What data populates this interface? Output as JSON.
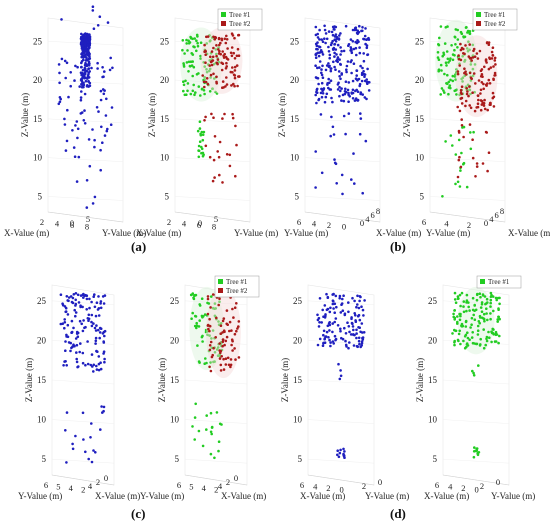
{
  "panel_labels": [
    "(a)",
    "(b)",
    "(c)",
    "(d)"
  ],
  "chart_data": [
    {
      "type": "scatter",
      "panel": "(a)",
      "view": "left",
      "xlabel": "X-Value (m)",
      "ylabel": "Z-Value (m)",
      "zlabel": "Y-Value (m)",
      "ylim": [
        3,
        28
      ],
      "yticks": [
        5,
        10,
        15,
        20,
        25
      ],
      "xticks": [
        "2",
        "4",
        "6",
        "8"
      ],
      "zticks": [
        "0",
        "5"
      ],
      "series": [
        {
          "color": "#1f1fbf",
          "clusters": [
            [
              24,
              26,
              120
            ],
            [
              19,
              25,
              120
            ],
            [
              10,
              23,
              60
            ],
            [
              1,
              30,
              25
            ]
          ]
        }
      ]
    },
    {
      "type": "scatter",
      "panel": "(a)",
      "view": "right",
      "xlabel": "X-Value (m)",
      "ylabel": "Z-Value (m)",
      "zlabel": "Y-Value (m)",
      "ylim": [
        3,
        28
      ],
      "yticks": [
        5,
        10,
        15,
        20,
        25
      ],
      "xticks": [
        "2",
        "4",
        "6",
        "8"
      ],
      "zticks": [
        "0",
        "5"
      ],
      "legend": {
        "placement": "top-right",
        "entries": [
          "Tree #1",
          "Tree #2"
        ]
      },
      "series": [
        {
          "name": "Tree #1",
          "color": "#22cc22",
          "clusters": [
            [
              18,
              26,
              100
            ],
            [
              10,
              15,
              20
            ]
          ]
        },
        {
          "name": "Tree #2",
          "color": "#aa1a1a",
          "clusters": [
            [
              19,
              26,
              100
            ],
            [
              6,
              16,
              25
            ]
          ]
        }
      ]
    },
    {
      "type": "scatter",
      "panel": "(b)",
      "view": "left",
      "xlabel": "Y-Value (m)",
      "ylabel": "Z-Value (m)",
      "zlabel": "X-Value (m)",
      "ylim": [
        3,
        28
      ],
      "yticks": [
        5,
        10,
        15,
        20,
        25
      ],
      "xticks": [
        "6",
        "4",
        "2",
        "0"
      ],
      "zticks": [
        "0",
        "4",
        "6",
        "8"
      ],
      "series": [
        {
          "color": "#1f1fbf",
          "clusters": [
            [
              17,
              27,
              260
            ],
            [
              5,
              16,
              25
            ]
          ]
        }
      ]
    },
    {
      "type": "scatter",
      "panel": "(b)",
      "view": "right",
      "xlabel": "Y-Value (m)",
      "ylabel": "Z-Value (m)",
      "zlabel": "X-Value (m)",
      "ylim": [
        3,
        28
      ],
      "yticks": [
        5,
        10,
        15,
        20,
        25
      ],
      "xticks": [
        "6",
        "4",
        "2"
      ],
      "zticks": [
        "0",
        "4",
        "6",
        "8"
      ],
      "legend": {
        "placement": "top-right",
        "entries": [
          "Tree #1",
          "Tree #2"
        ]
      },
      "series": [
        {
          "name": "Tree #1",
          "color": "#22cc22",
          "clusters": [
            [
              18,
              27,
              120
            ],
            [
              5,
              15,
              20
            ]
          ]
        },
        {
          "name": "Tree #2",
          "color": "#aa1a1a",
          "clusters": [
            [
              16,
              25,
              120
            ],
            [
              7,
              15,
              20
            ]
          ]
        }
      ]
    },
    {
      "type": "scatter",
      "panel": "(c)",
      "view": "left",
      "xlabel": "Y-Value (m)",
      "ylabel": "Z-Value (m)",
      "zlabel": "X-Value (m)",
      "ylim": [
        3,
        27
      ],
      "yticks": [
        5,
        10,
        15,
        20,
        25
      ],
      "xticks": [
        "6",
        "5",
        "4",
        "2"
      ],
      "zticks": [
        "4",
        "2",
        "0"
      ],
      "series": [
        {
          "color": "#1f1fbf",
          "clusters": [
            [
              16,
              26,
              150
            ],
            [
              4,
              12,
              20
            ]
          ]
        }
      ]
    },
    {
      "type": "scatter",
      "panel": "(c)",
      "view": "right",
      "xlabel": "Y-Value (m)",
      "ylabel": "Z-Value (m)",
      "zlabel": "X-Value (m)",
      "ylim": [
        3,
        27
      ],
      "yticks": [
        5,
        10,
        15,
        20,
        25
      ],
      "xticks": [
        "6",
        "5",
        "4",
        "2"
      ],
      "zticks": [
        "4",
        "2",
        "0"
      ],
      "legend": {
        "placement": "top-right",
        "entries": [
          "Tree #1",
          "Tree #2"
        ]
      },
      "series": [
        {
          "name": "Tree #1",
          "color": "#22cc22",
          "clusters": [
            [
              17,
              26,
              80
            ],
            [
              4,
              12,
              20
            ]
          ]
        },
        {
          "name": "Tree #2",
          "color": "#aa1a1a",
          "clusters": [
            [
              16,
              26,
              80
            ]
          ]
        }
      ]
    },
    {
      "type": "scatter",
      "panel": "(d)",
      "view": "left",
      "xlabel": "X-Value (m)",
      "ylabel": "Z-Value (m)",
      "zlabel": "Y-Value (m)",
      "ylim": [
        3,
        27
      ],
      "yticks": [
        5,
        10,
        15,
        20,
        25
      ],
      "xticks": [
        "6",
        "4",
        "2",
        "0"
      ],
      "zticks": [
        "2",
        "0"
      ],
      "series": [
        {
          "color": "#1f1fbf",
          "clusters": [
            [
              19,
              26,
              140
            ],
            [
              15,
              17,
              4
            ],
            [
              5,
              6.5,
              12
            ]
          ]
        }
      ]
    },
    {
      "type": "scatter",
      "panel": "(d)",
      "view": "right",
      "xlabel": "X-Value (m)",
      "ylabel": "Z-Value (m)",
      "zlabel": "Y-Value (m)",
      "ylim": [
        3,
        27
      ],
      "yticks": [
        5,
        10,
        15,
        20,
        25
      ],
      "xticks": [
        "6",
        "4",
        "2",
        "0"
      ],
      "zticks": [
        "2",
        "0"
      ],
      "legend": {
        "placement": "top-right",
        "entries": [
          "Tree #1"
        ]
      },
      "series": [
        {
          "name": "Tree #1",
          "color": "#22cc22",
          "clusters": [
            [
              19,
              26,
              160
            ],
            [
              15,
              17,
              4
            ],
            [
              5,
              6.5,
              12
            ]
          ]
        }
      ]
    }
  ]
}
